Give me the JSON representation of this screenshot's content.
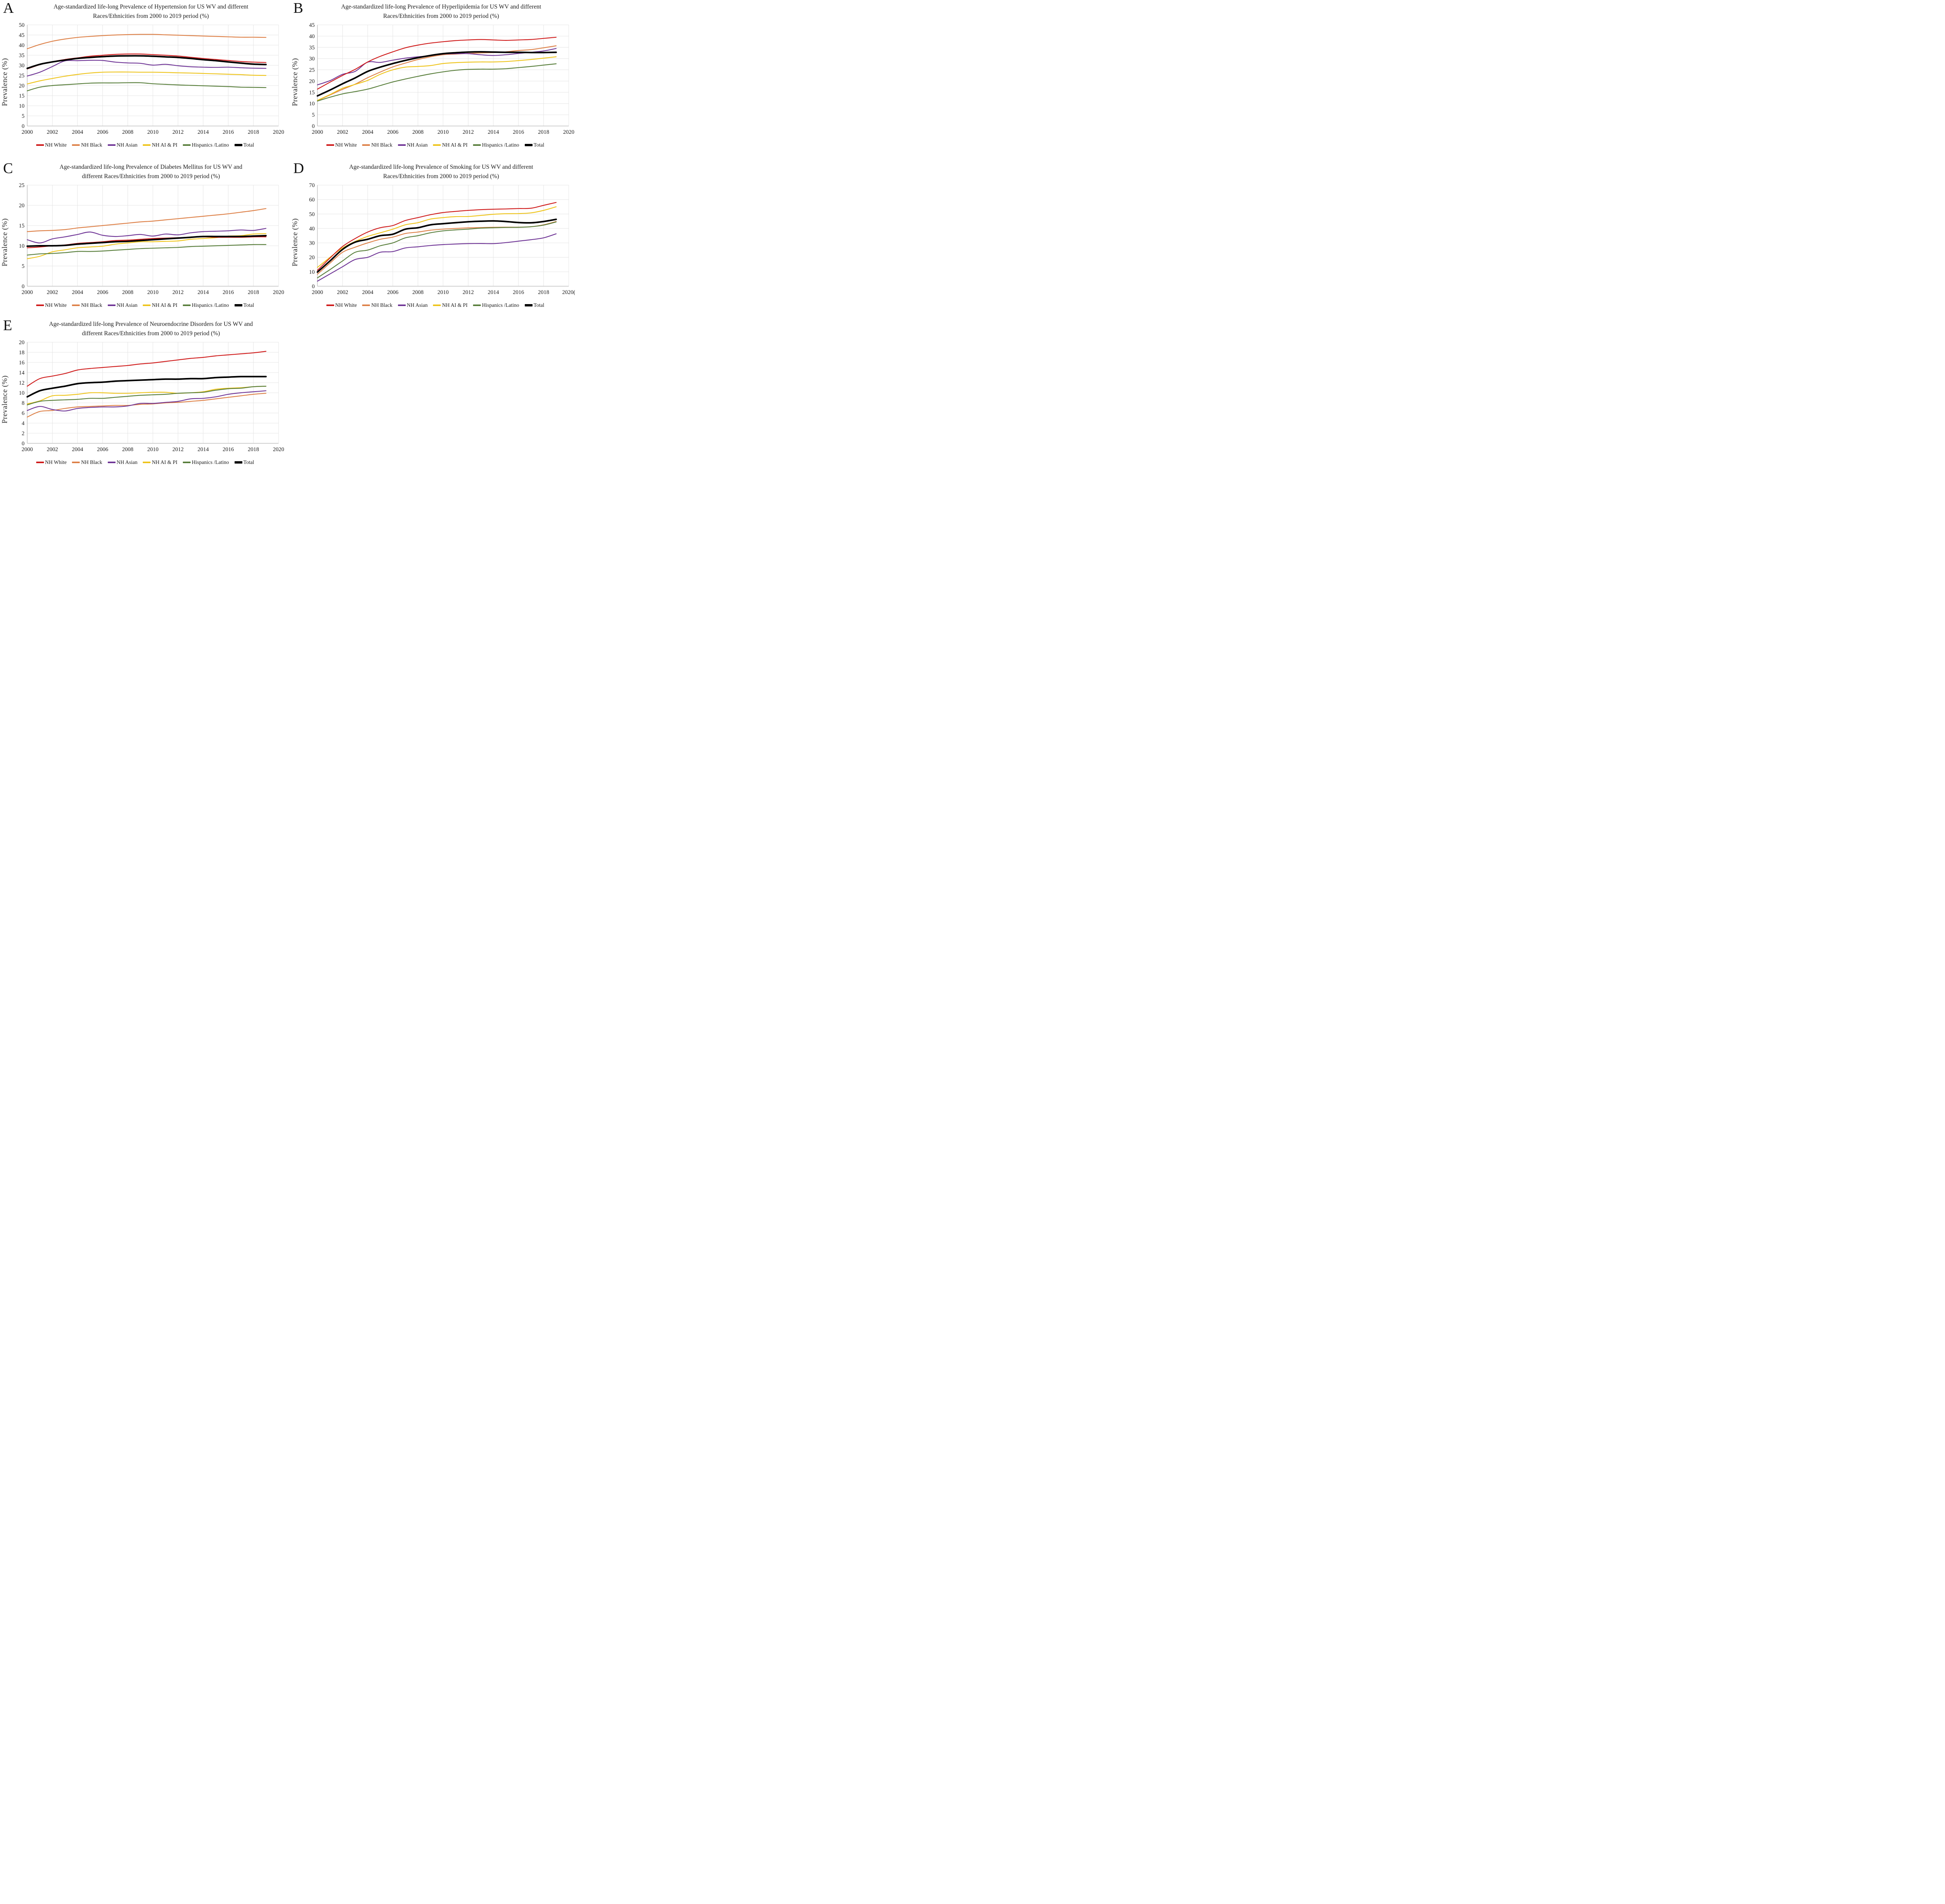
{
  "figure": {
    "ylabel": "Prevalence (%)",
    "legend_labels": [
      "NH White",
      "NH Black",
      "NH Asian",
      "NH AI & PI",
      "Hispanics /Latino",
      "Total"
    ],
    "colors": {
      "nh_white": "#cf1a1a",
      "nh_black": "#dd8047",
      "nh_asian": "#6f3596",
      "nh_ai_pi": "#eec41b",
      "hispanics": "#587e3b",
      "total": "#000000",
      "gridline": "#e4e4e4",
      "axis": "#b5b5b5"
    },
    "stray_mark_right_of_e": "'",
    "x_years": [
      2000,
      2001,
      2002,
      2003,
      2004,
      2005,
      2006,
      2007,
      2008,
      2009,
      2010,
      2011,
      2012,
      2013,
      2014,
      2015,
      2016,
      2017,
      2018,
      2019
    ],
    "x_tick_labels": [
      "2000",
      "2002",
      "2004",
      "2006",
      "2008",
      "2010",
      "2012",
      "2014",
      "2016",
      "2018",
      "2020"
    ]
  },
  "chart_data": [
    {
      "panel": "A",
      "type": "line",
      "title_line1": "Age-standardized life-long Prevalence of Hypertension for US WV and different",
      "title_line2": "Races/Ethnicities from 2000 to 2019 period (%)",
      "ylabel": "Prevalence (%)",
      "ylim": [
        0,
        50
      ],
      "ystep": 5,
      "x_suffix": "",
      "series": [
        {
          "name": "NH White",
          "color": "#cf1a1a",
          "values": [
            28.2,
            30.3,
            31.8,
            32.9,
            33.7,
            34.5,
            35.0,
            35.4,
            35.6,
            35.6,
            35.3,
            35.0,
            34.6,
            34.0,
            33.4,
            32.9,
            32.4,
            31.9,
            31.6,
            31.4
          ]
        },
        {
          "name": "NH Black",
          "color": "#dd8047",
          "values": [
            38.2,
            40.3,
            41.9,
            43.0,
            43.8,
            44.3,
            44.7,
            45.0,
            45.2,
            45.3,
            45.3,
            45.1,
            44.9,
            44.7,
            44.5,
            44.3,
            44.1,
            43.9,
            43.9,
            43.8
          ]
        },
        {
          "name": "NH Asian",
          "color": "#6f3596",
          "values": [
            24.7,
            26.6,
            29.4,
            32.2,
            32.3,
            32.5,
            32.4,
            31.6,
            31.2,
            31.0,
            30.1,
            30.5,
            29.8,
            29.3,
            29.1,
            29.0,
            29.1,
            28.8,
            28.6,
            28.5
          ]
        },
        {
          "name": "NH AI & PI",
          "color": "#eec41b",
          "values": [
            20.8,
            22.3,
            23.5,
            24.6,
            25.5,
            26.2,
            26.6,
            26.7,
            26.7,
            26.6,
            26.6,
            26.5,
            26.3,
            26.2,
            26.0,
            25.8,
            25.6,
            25.4,
            25.1,
            25.0
          ]
        },
        {
          "name": "Hispanics /Latino",
          "color": "#587e3b",
          "values": [
            17.4,
            19.2,
            20.0,
            20.4,
            20.8,
            21.2,
            21.3,
            21.3,
            21.4,
            21.4,
            20.9,
            20.6,
            20.3,
            20.1,
            19.9,
            19.7,
            19.5,
            19.2,
            19.1,
            19.0
          ]
        },
        {
          "name": "Total",
          "color": "#000000",
          "values": [
            28.5,
            30.5,
            31.7,
            32.6,
            33.4,
            33.9,
            34.3,
            34.6,
            34.7,
            34.7,
            34.5,
            34.2,
            33.9,
            33.4,
            32.8,
            32.3,
            31.7,
            31.1,
            30.6,
            30.4
          ]
        }
      ]
    },
    {
      "panel": "B",
      "type": "line",
      "title_line1": "Age-standardized life-long Prevalence of Hyperlipidemia for US WV and different",
      "title_line2": "Races/Ethnicities from 2000 to 2019 period (%)",
      "ylabel": "Prevalence (%)",
      "ylim": [
        0,
        45
      ],
      "ystep": 5,
      "x_suffix": "",
      "series": [
        {
          "name": "NH White",
          "color": "#cf1a1a",
          "values": [
            16.4,
            19.5,
            22.5,
            25.2,
            28.5,
            31.0,
            33.0,
            34.8,
            36.0,
            36.9,
            37.5,
            38.0,
            38.3,
            38.5,
            38.3,
            38.1,
            38.3,
            38.5,
            39.0,
            39.5
          ]
        },
        {
          "name": "NH Black",
          "color": "#dd8047",
          "values": [
            11.3,
            13.8,
            16.3,
            18.6,
            21.5,
            24.0,
            26.3,
            28.0,
            29.6,
            30.8,
            31.7,
            32.0,
            32.3,
            32.5,
            32.7,
            33.0,
            33.6,
            34.0,
            34.8,
            35.7
          ]
        },
        {
          "name": "NH Asian",
          "color": "#6f3596",
          "values": [
            18.3,
            20.2,
            23.0,
            24.3,
            28.4,
            28.3,
            29.3,
            30.2,
            30.8,
            31.3,
            32.0,
            32.2,
            32.2,
            31.7,
            31.4,
            31.7,
            32.3,
            32.8,
            33.4,
            34.5
          ]
        },
        {
          "name": "NH AI & PI",
          "color": "#eec41b",
          "values": [
            11.4,
            14.0,
            16.8,
            18.5,
            20.3,
            23.0,
            25.0,
            26.2,
            26.5,
            26.9,
            27.8,
            28.2,
            28.4,
            28.5,
            28.5,
            28.7,
            29.1,
            29.6,
            30.2,
            30.8
          ]
        },
        {
          "name": "Hispanics /Latino",
          "color": "#587e3b",
          "values": [
            11.1,
            12.8,
            14.3,
            15.3,
            16.4,
            18.0,
            19.6,
            20.9,
            22.1,
            23.2,
            24.1,
            24.8,
            25.2,
            25.3,
            25.3,
            25.5,
            26.0,
            26.5,
            27.1,
            27.7
          ]
        },
        {
          "name": "Total",
          "color": "#000000",
          "values": [
            13.4,
            16.0,
            18.8,
            21.4,
            24.3,
            26.2,
            27.8,
            29.2,
            30.4,
            31.4,
            32.2,
            32.6,
            32.9,
            33.0,
            32.9,
            32.8,
            32.8,
            32.7,
            32.7,
            32.8
          ]
        }
      ]
    },
    {
      "panel": "C",
      "type": "line",
      "title_line1": "Age-standardized life-long Prevalence of Diabetes Mellitus for US WV and",
      "title_line2": "different Races/Ethnicities from 2000 to 2019 period (%)",
      "ylabel": "Prevalence (%)",
      "ylim": [
        0,
        25
      ],
      "ystep": 5,
      "x_suffix": "",
      "series": [
        {
          "name": "NH White",
          "color": "#cf1a1a",
          "values": [
            9.5,
            9.7,
            10.0,
            10.2,
            10.6,
            10.8,
            11.0,
            11.3,
            11.4,
            11.6,
            11.8,
            11.9,
            12.0,
            12.1,
            12.2,
            12.1,
            12.1,
            12.1,
            12.2,
            12.2
          ]
        },
        {
          "name": "NH Black",
          "color": "#dd8047",
          "values": [
            13.5,
            13.7,
            13.8,
            14.0,
            14.4,
            14.7,
            15.0,
            15.3,
            15.6,
            15.9,
            16.1,
            16.4,
            16.7,
            17.0,
            17.3,
            17.6,
            17.9,
            18.3,
            18.7,
            19.2
          ]
        },
        {
          "name": "NH Asian",
          "color": "#6f3596",
          "values": [
            11.5,
            10.7,
            11.7,
            12.2,
            12.8,
            13.4,
            12.6,
            12.3,
            12.5,
            12.8,
            12.4,
            12.9,
            12.7,
            13.2,
            13.5,
            13.6,
            13.7,
            13.9,
            13.8,
            14.3
          ]
        },
        {
          "name": "NH AI & PI",
          "color": "#eec41b",
          "values": [
            6.8,
            7.4,
            8.5,
            9.0,
            9.5,
            9.7,
            9.9,
            10.4,
            10.7,
            11.0,
            11.0,
            11.1,
            11.2,
            11.6,
            11.8,
            12.0,
            12.4,
            12.5,
            12.9,
            13.0
          ]
        },
        {
          "name": "Hispanics /Latino",
          "color": "#587e3b",
          "values": [
            7.7,
            8.0,
            8.1,
            8.3,
            8.6,
            8.6,
            8.7,
            8.9,
            9.1,
            9.3,
            9.4,
            9.5,
            9.6,
            9.8,
            9.9,
            10.0,
            10.1,
            10.2,
            10.3,
            10.3
          ]
        },
        {
          "name": "Total",
          "color": "#000000",
          "values": [
            9.9,
            10.0,
            10.0,
            10.1,
            10.4,
            10.6,
            10.8,
            11.0,
            11.1,
            11.3,
            11.5,
            11.7,
            11.9,
            12.1,
            12.3,
            12.3,
            12.3,
            12.3,
            12.4,
            12.5
          ]
        }
      ]
    },
    {
      "panel": "D",
      "type": "line",
      "title_line1": "Age-standardized life-long Prevalence of Smoking for US WV and different",
      "title_line2": "Races/Ethnicities from 2000 to 2019 period (%)",
      "ylabel": "Prevalence (%)",
      "ylim": [
        0,
        70
      ],
      "ystep": 10,
      "x_suffix": "(",
      "series": [
        {
          "name": "NH White",
          "color": "#cf1a1a",
          "values": [
            11.0,
            19.5,
            27.5,
            33.0,
            37.5,
            40.5,
            42.0,
            45.5,
            47.5,
            49.5,
            51.0,
            51.8,
            52.5,
            53.0,
            53.3,
            53.5,
            53.8,
            54.0,
            56.0,
            58.0
          ]
        },
        {
          "name": "NH Black",
          "color": "#dd8047",
          "values": [
            8.3,
            16.0,
            23.5,
            27.0,
            30.0,
            32.5,
            34.0,
            36.5,
            37.5,
            38.8,
            39.5,
            40.0,
            40.4,
            40.6,
            40.8,
            40.9,
            40.9,
            41.2,
            42.5,
            44.8
          ]
        },
        {
          "name": "NH Asian",
          "color": "#6f3596",
          "values": [
            3.5,
            8.5,
            13.5,
            18.5,
            20.0,
            23.5,
            24.0,
            26.5,
            27.3,
            28.2,
            28.8,
            29.2,
            29.5,
            29.6,
            29.5,
            30.2,
            31.2,
            32.2,
            33.5,
            36.3
          ]
        },
        {
          "name": "NH AI & PI",
          "color": "#eec41b",
          "values": [
            13.0,
            20.0,
            26.5,
            31.0,
            34.5,
            37.0,
            39.5,
            42.5,
            44.0,
            46.5,
            47.5,
            48.2,
            48.3,
            49.0,
            49.8,
            50.2,
            50.3,
            50.8,
            52.5,
            55.0
          ]
        },
        {
          "name": "Hispanics /Latino",
          "color": "#587e3b",
          "values": [
            5.8,
            11.5,
            17.5,
            23.5,
            25.0,
            28.0,
            30.0,
            33.5,
            35.0,
            37.0,
            38.3,
            39.0,
            39.5,
            40.2,
            40.5,
            40.7,
            40.8,
            41.2,
            42.3,
            44.5
          ]
        },
        {
          "name": "Total",
          "color": "#000000",
          "values": [
            9.8,
            17.5,
            25.5,
            30.5,
            32.5,
            35.0,
            36.0,
            39.5,
            40.5,
            42.5,
            43.3,
            44.0,
            44.6,
            45.0,
            45.2,
            44.8,
            44.1,
            43.9,
            44.8,
            46.3
          ]
        }
      ]
    },
    {
      "panel": "E",
      "type": "line",
      "title_line1": "Age-standardized life-long Prevalence of Neuroendocrine Disorders for US WV and",
      "title_line2": "different Races/Ethnicities from 2000 to 2019 period (%)",
      "ylabel": "Prevalence (%)",
      "ylim": [
        0,
        20
      ],
      "ystep": 2,
      "x_suffix": "",
      "series": [
        {
          "name": "NH White",
          "color": "#cf1a1a",
          "values": [
            11.3,
            12.8,
            13.3,
            13.8,
            14.5,
            14.8,
            15.0,
            15.2,
            15.4,
            15.7,
            15.9,
            16.2,
            16.5,
            16.8,
            17.0,
            17.3,
            17.5,
            17.7,
            17.9,
            18.2
          ]
        },
        {
          "name": "NH Black",
          "color": "#dd8047",
          "values": [
            5.2,
            6.3,
            6.5,
            6.9,
            7.2,
            7.3,
            7.4,
            7.5,
            7.5,
            7.7,
            7.8,
            8.0,
            8.1,
            8.3,
            8.5,
            8.8,
            9.1,
            9.4,
            9.7,
            9.9
          ]
        },
        {
          "name": "NH Asian",
          "color": "#6f3596",
          "values": [
            6.5,
            7.3,
            6.7,
            6.4,
            6.9,
            7.1,
            7.2,
            7.2,
            7.4,
            7.9,
            7.9,
            8.1,
            8.3,
            8.8,
            8.9,
            9.2,
            9.7,
            10.0,
            10.2,
            10.4
          ]
        },
        {
          "name": "NH AI & PI",
          "color": "#eec41b",
          "values": [
            7.8,
            8.4,
            9.4,
            9.5,
            9.7,
            10.0,
            10.0,
            9.9,
            9.9,
            10.0,
            10.1,
            10.1,
            9.9,
            10.0,
            10.2,
            10.7,
            10.9,
            11.0,
            11.2,
            11.3
          ]
        },
        {
          "name": "Hispanics /Latino",
          "color": "#587e3b",
          "values": [
            7.6,
            8.3,
            8.5,
            8.6,
            8.7,
            8.9,
            8.9,
            9.1,
            9.3,
            9.5,
            9.6,
            9.7,
            9.9,
            10.0,
            10.1,
            10.5,
            10.8,
            10.9,
            11.2,
            11.3
          ]
        },
        {
          "name": "Total",
          "color": "#000000",
          "values": [
            9.2,
            10.4,
            10.9,
            11.3,
            11.8,
            12.0,
            12.1,
            12.3,
            12.4,
            12.5,
            12.6,
            12.7,
            12.7,
            12.8,
            12.8,
            13.0,
            13.1,
            13.2,
            13.2,
            13.2
          ]
        }
      ]
    }
  ]
}
